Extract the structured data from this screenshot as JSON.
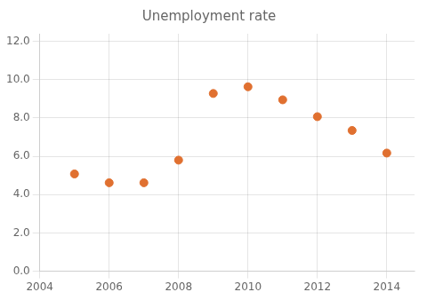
{
  "chart_data": {
    "type": "scatter",
    "title": "Unemployment rate",
    "x": [
      2005,
      2006,
      2007,
      2008,
      2009,
      2010,
      2011,
      2012,
      2013,
      2014
    ],
    "values": [
      5.08,
      4.62,
      4.62,
      5.8,
      9.28,
      9.63,
      8.95,
      8.07,
      7.35,
      6.17
    ],
    "color": "#E07030",
    "xlim": [
      2004,
      2014.8
    ],
    "ylim": [
      0,
      12.4
    ],
    "xticks": [
      2004,
      2006,
      2008,
      2010,
      2012,
      2014
    ],
    "yticks": [
      {
        "value": 0,
        "label": "0.0"
      },
      {
        "value": 2,
        "label": "2.0"
      },
      {
        "value": 4,
        "label": "4.0"
      },
      {
        "value": 6,
        "label": "6.0"
      },
      {
        "value": 8,
        "label": "8.0"
      },
      {
        "value": 10,
        "label": "10.0"
      },
      {
        "value": 12,
        "label": "12.0"
      }
    ],
    "grid": true
  }
}
